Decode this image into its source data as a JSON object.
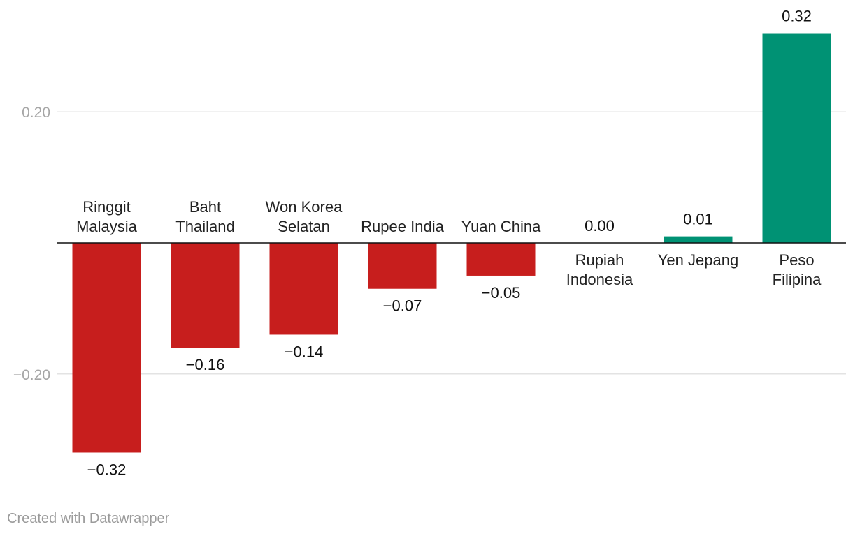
{
  "chart_data": {
    "type": "bar",
    "categories": [
      [
        "Ringgit",
        "Malaysia"
      ],
      [
        "Baht",
        "Thailand"
      ],
      [
        "Won Korea",
        "Selatan"
      ],
      [
        "Rupee India"
      ],
      [
        "Yuan China"
      ],
      [
        "Rupiah",
        "Indonesia"
      ],
      [
        "Yen Jepang"
      ],
      [
        "Peso",
        "Filipina"
      ]
    ],
    "values": [
      -0.32,
      -0.16,
      -0.14,
      -0.07,
      -0.05,
      0.0,
      0.01,
      0.32
    ],
    "value_labels": [
      "−0.32",
      "−0.16",
      "−0.14",
      "−0.07",
      "−0.05",
      "0.00",
      "0.01",
      "0.32"
    ],
    "y_ticks": [
      {
        "value": 0.2,
        "label": "0.20"
      },
      {
        "value": -0.2,
        "label": "−0.20"
      }
    ],
    "ylim": [
      -0.32,
      0.32
    ],
    "grid": true,
    "colors": {
      "negative": "#c71e1d",
      "positive": "#009274",
      "grid": "#e3e3e3",
      "baseline": "#111111"
    }
  },
  "footer": {
    "credit": "Created with Datawrapper"
  }
}
